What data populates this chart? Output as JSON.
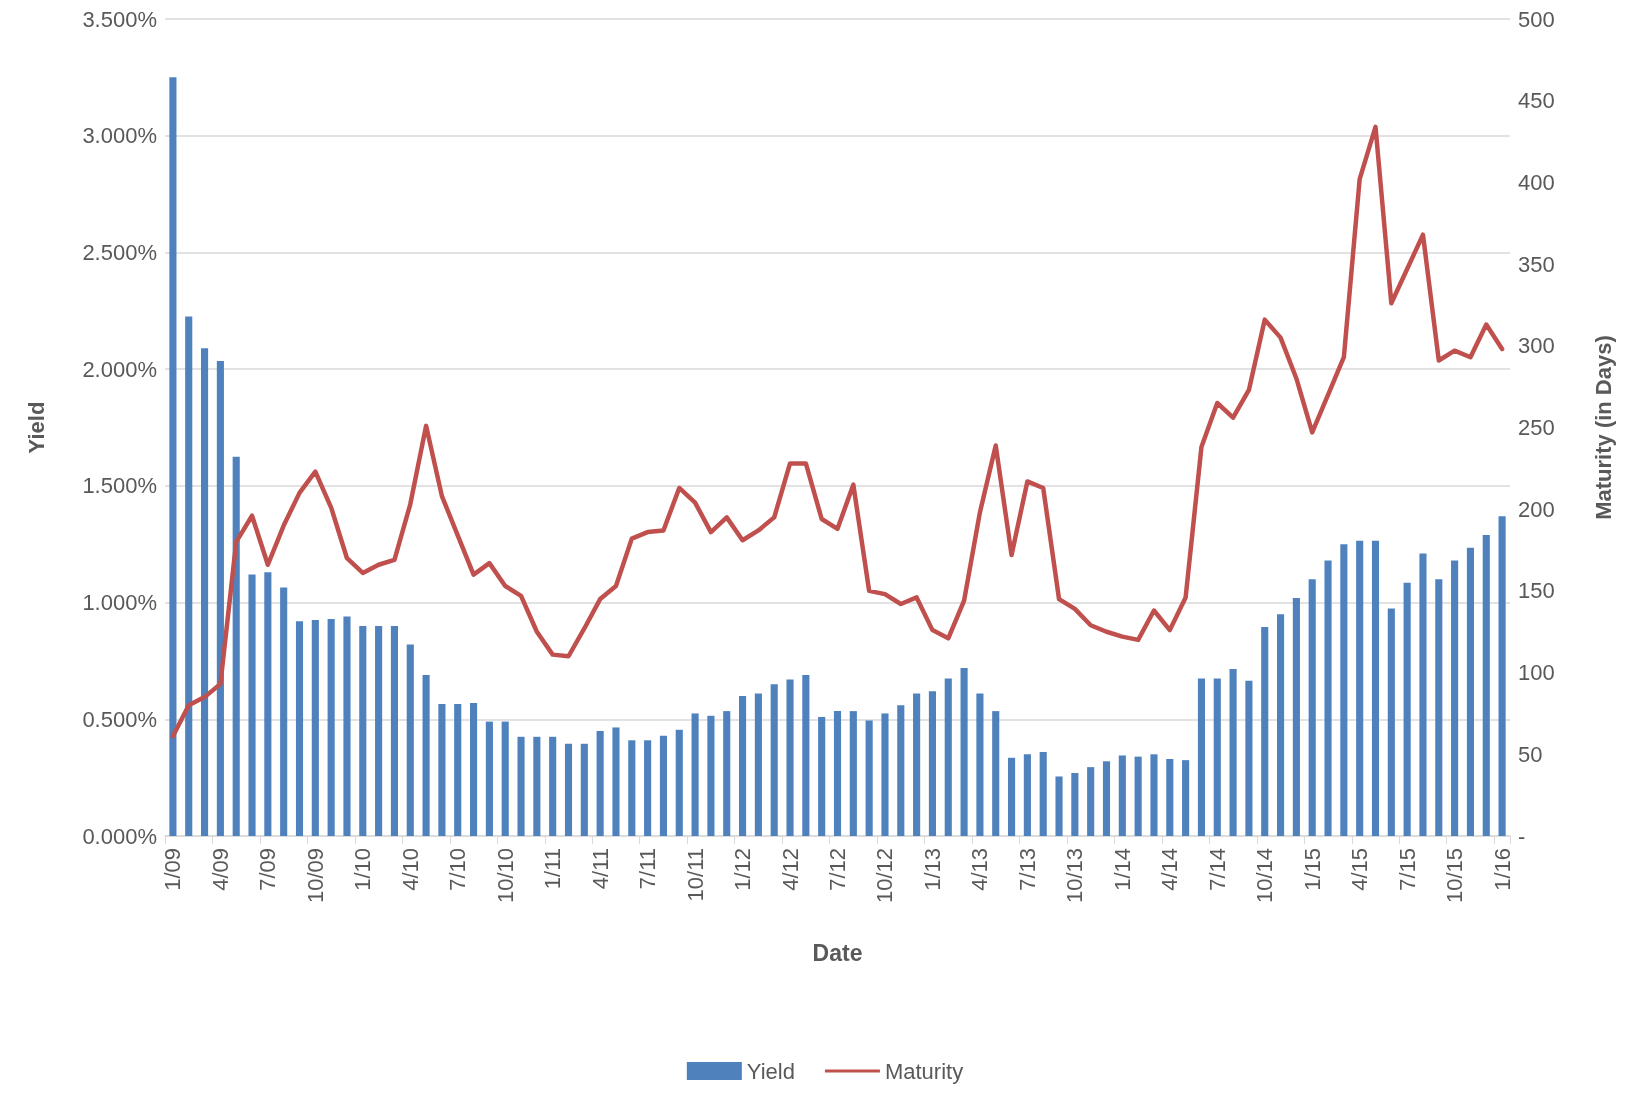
{
  "chart_data": {
    "type": "bar",
    "xlabel": "Date",
    "ylabel": "Yield",
    "y2label": "Maturity (in Days)",
    "categories": [
      "1/09",
      null,
      null,
      "4/09",
      null,
      null,
      "7/09",
      null,
      null,
      "10/09",
      null,
      null,
      "1/10",
      null,
      null,
      "4/10",
      null,
      null,
      "7/10",
      null,
      null,
      "10/10",
      null,
      null,
      "1/11",
      null,
      null,
      "4/11",
      null,
      null,
      "7/11",
      null,
      null,
      "10/11",
      null,
      null,
      "1/12",
      null,
      null,
      "4/12",
      null,
      null,
      "7/12",
      null,
      null,
      "10/12",
      null,
      null,
      "1/13",
      null,
      null,
      "4/13",
      null,
      null,
      "7/13",
      null,
      null,
      "10/13",
      null,
      null,
      "1/14",
      null,
      null,
      "4/14",
      null,
      null,
      "7/14",
      null,
      null,
      "10/14",
      null,
      null,
      "1/15",
      null,
      null,
      "4/15",
      null,
      null,
      "7/15",
      null,
      null,
      "10/15",
      null,
      null,
      "1/16"
    ],
    "series": [
      {
        "name": "Yield",
        "color": "#4f81bd",
        "values": [
          3.25,
          2.225,
          2.09,
          2.035,
          1.625,
          1.12,
          1.13,
          1.065,
          0.92,
          0.925,
          0.93,
          0.94,
          0.9,
          0.9,
          0.9,
          0.82,
          0.69,
          0.565,
          0.565,
          0.57,
          0.49,
          0.49,
          0.425,
          0.425,
          0.425,
          0.395,
          0.395,
          0.45,
          0.465,
          0.41,
          0.41,
          0.43,
          0.455,
          0.525,
          0.515,
          0.535,
          0.6,
          0.61,
          0.65,
          0.67,
          0.69,
          0.51,
          0.535,
          0.535,
          0.495,
          0.525,
          0.56,
          0.61,
          0.62,
          0.675,
          0.72,
          0.61,
          0.535,
          0.335,
          0.35,
          0.36,
          0.255,
          0.27,
          0.295,
          0.32,
          0.345,
          0.34,
          0.35,
          0.33,
          0.325,
          0.675,
          0.675,
          0.715,
          0.665,
          0.895,
          0.95,
          1.02,
          1.1,
          1.18,
          1.25,
          1.265,
          1.265,
          0.975,
          1.085,
          1.21,
          1.1,
          1.18,
          1.235,
          1.29,
          1.37
        ]
      },
      {
        "name": "Maturity",
        "type": "line",
        "axis": "y2",
        "color": "#c0504d",
        "values": [
          61,
          80,
          85,
          93,
          180,
          196,
          166,
          190,
          210,
          223,
          201,
          170,
          161,
          166,
          169,
          203,
          251,
          208,
          184,
          160,
          167,
          153,
          147,
          125,
          111,
          110,
          127,
          145,
          153,
          182,
          186,
          187,
          213,
          204,
          186,
          195,
          181,
          187,
          195,
          228,
          228,
          194,
          188,
          215,
          150,
          148,
          142,
          146,
          126,
          121,
          144,
          198,
          239,
          172,
          217,
          213,
          145,
          139,
          129,
          125,
          122,
          120,
          138,
          126,
          146,
          238,
          265,
          256,
          273,
          316,
          305,
          280,
          247,
          270,
          293,
          402,
          434,
          326,
          347,
          368,
          291,
          297,
          293,
          313,
          298
        ]
      }
    ],
    "ylim": [
      0,
      3.5
    ],
    "yticks": [
      {
        "value": 0,
        "label": "0.000%"
      },
      {
        "value": 0.5,
        "label": "0.500%"
      },
      {
        "value": 1,
        "label": "1.000%"
      },
      {
        "value": 1.5,
        "label": "1.500%"
      },
      {
        "value": 2,
        "label": "2.000%"
      },
      {
        "value": 2.5,
        "label": "2.500%"
      },
      {
        "value": 3,
        "label": "3.000%"
      },
      {
        "value": 3.5,
        "label": "3.500%"
      }
    ],
    "y2lim": [
      0,
      500
    ],
    "y2ticks": [
      {
        "value": 0,
        "label": "-"
      },
      50,
      100,
      150,
      200,
      250,
      300,
      350,
      400,
      450,
      500
    ],
    "grid": "y",
    "legend": "bottom",
    "marker": "none",
    "line_style": "solid"
  }
}
